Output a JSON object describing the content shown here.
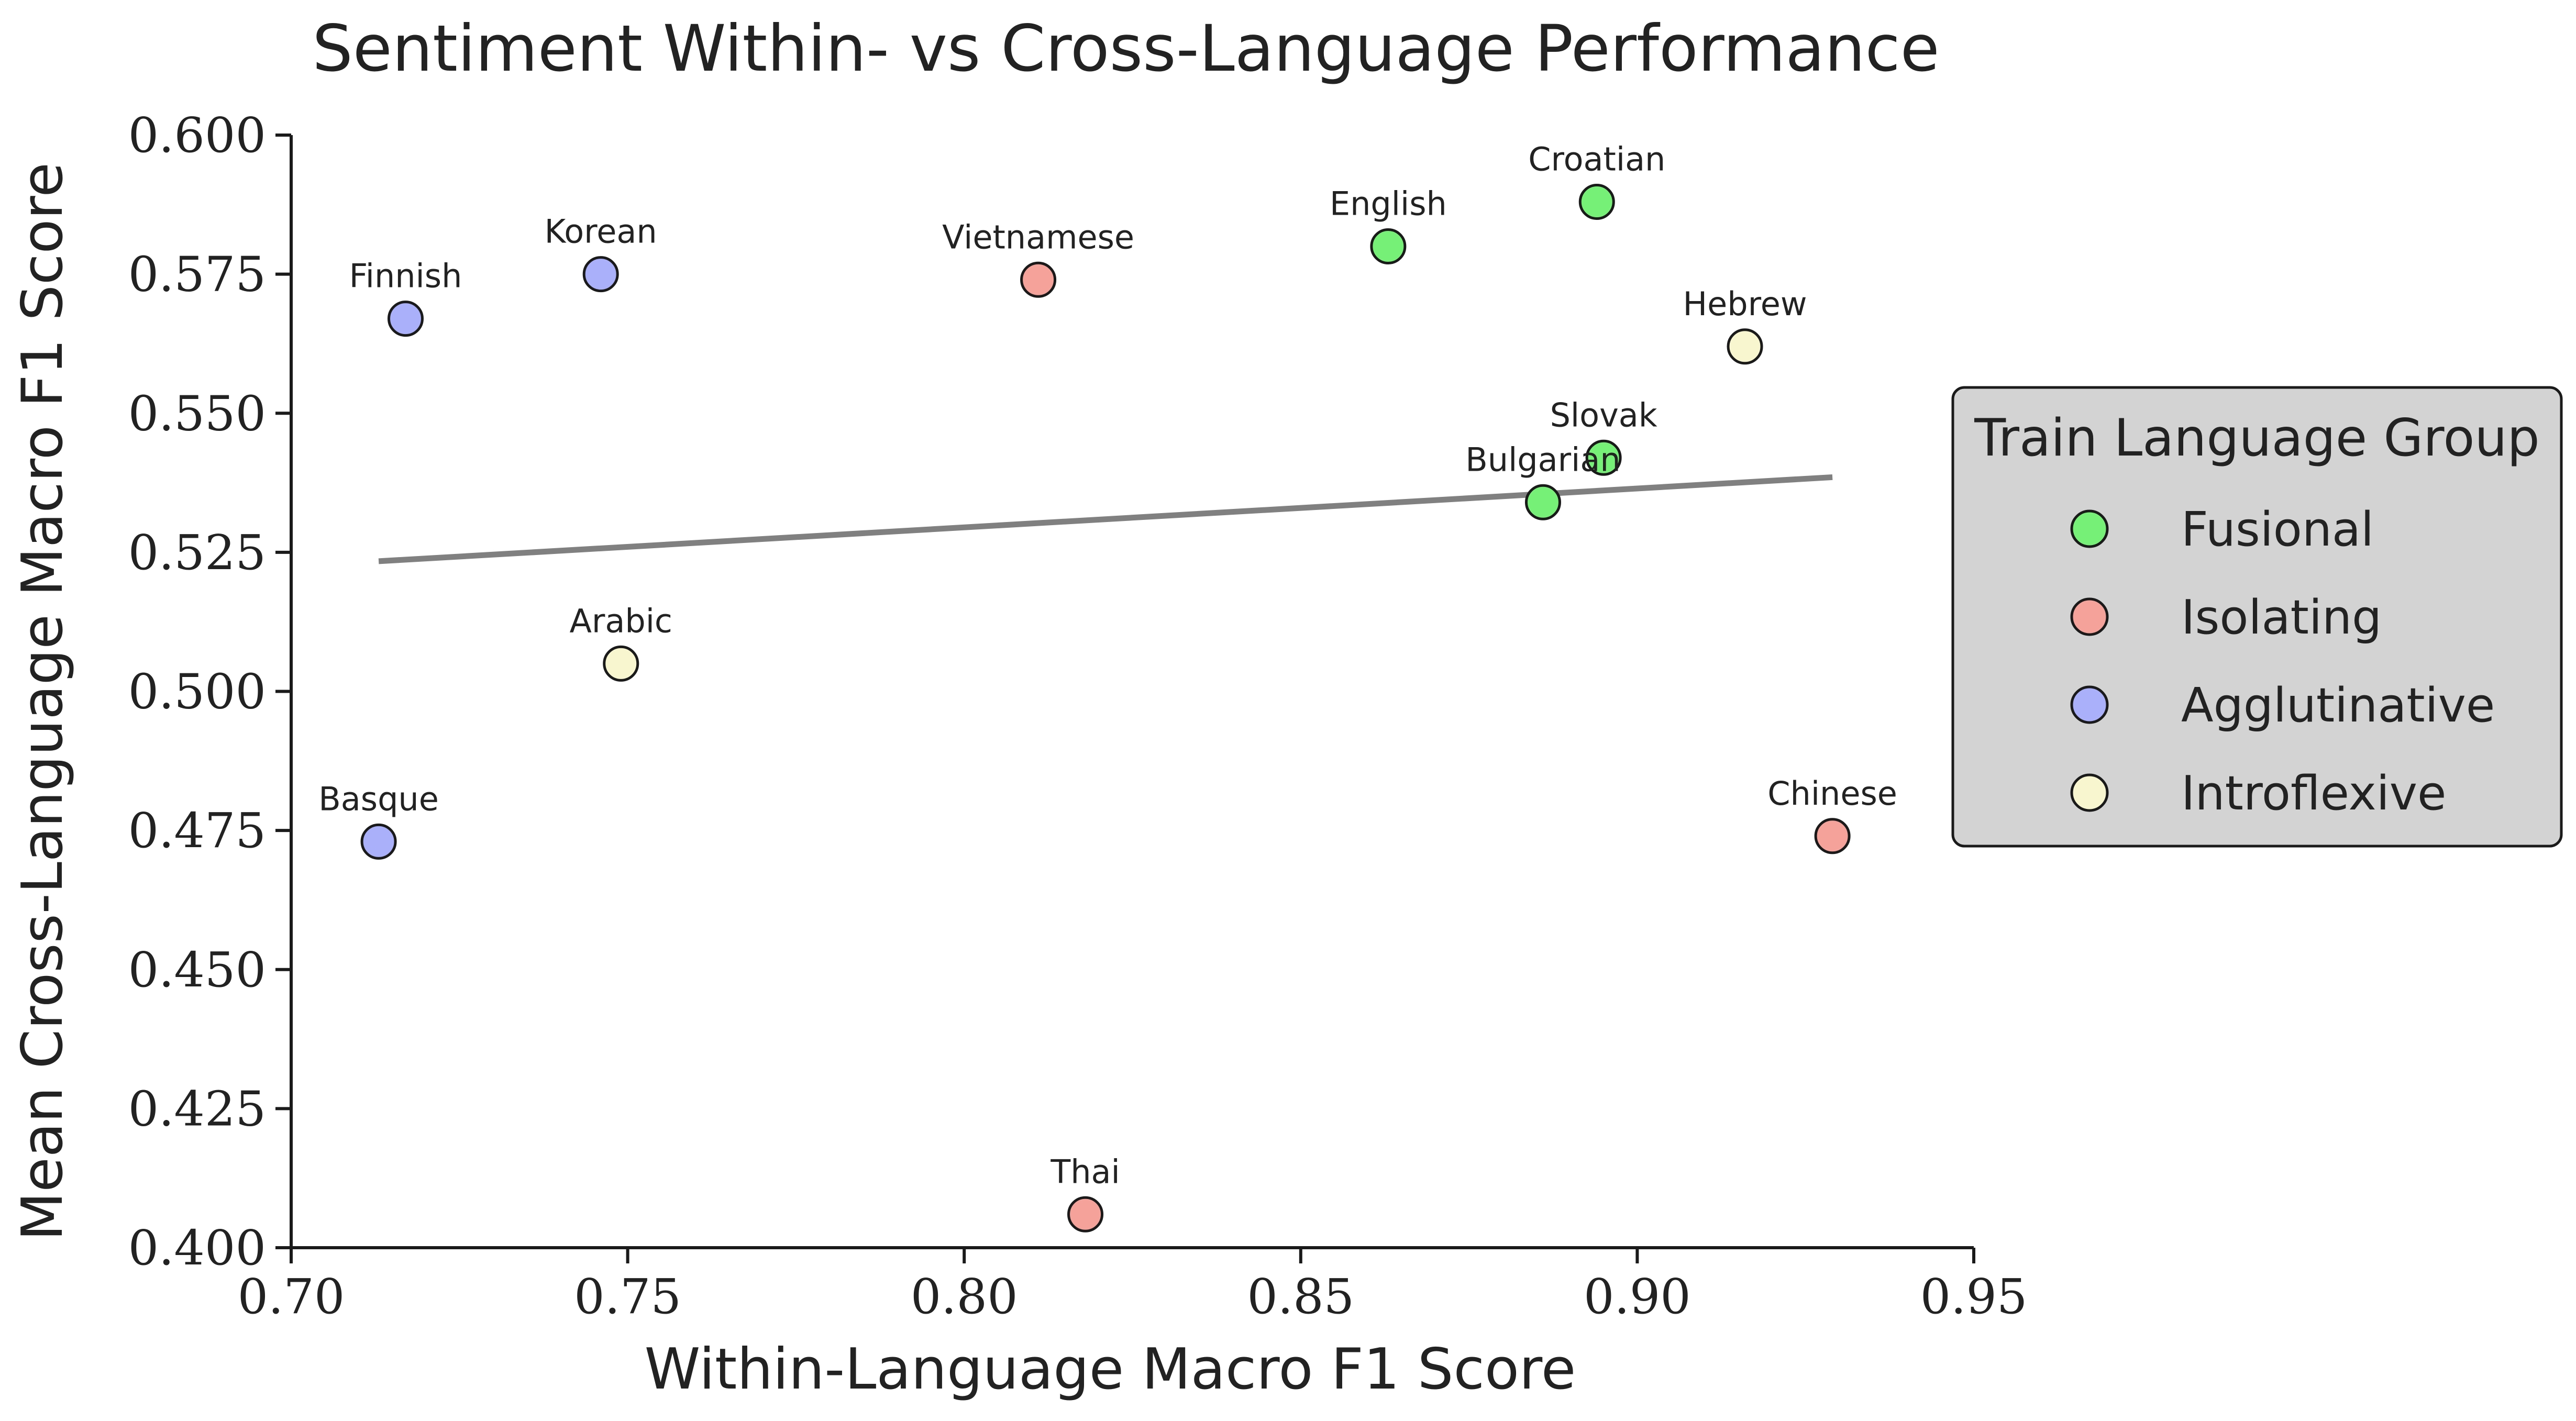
{
  "chart_data": {
    "type": "scatter",
    "title": "Sentiment Within- vs Cross-Language Performance",
    "xlabel": "Within-Language Macro F1 Score",
    "ylabel": "Mean Cross-Language Macro F1 Score",
    "xlim": [
      0.7,
      0.95
    ],
    "ylim": [
      0.4,
      0.6
    ],
    "x_ticks": [
      "0.70",
      "0.75",
      "0.80",
      "0.85",
      "0.90",
      "0.95"
    ],
    "y_ticks": [
      "0.400",
      "0.425",
      "0.450",
      "0.475",
      "0.500",
      "0.525",
      "0.550",
      "0.575",
      "0.600"
    ],
    "grid": false,
    "legend": {
      "title": "Train Language Group",
      "placement": "right",
      "entries": [
        {
          "name": "Fusional",
          "color": "#77f077"
        },
        {
          "name": "Isolating",
          "color": "#f5a29b"
        },
        {
          "name": "Agglutinative",
          "color": "#aab0fa"
        },
        {
          "name": "Introflexive",
          "color": "#f8f6cf"
        }
      ]
    },
    "points": [
      {
        "label": "Croatian",
        "x": 0.894,
        "y": 0.588,
        "group": "Fusional"
      },
      {
        "label": "English",
        "x": 0.863,
        "y": 0.58,
        "group": "Fusional"
      },
      {
        "label": "Slovak",
        "x": 0.895,
        "y": 0.542,
        "group": "Fusional"
      },
      {
        "label": "Bulgarian",
        "x": 0.886,
        "y": 0.534,
        "group": "Fusional"
      },
      {
        "label": "Vietnamese",
        "x": 0.811,
        "y": 0.574,
        "group": "Isolating"
      },
      {
        "label": "Thai",
        "x": 0.818,
        "y": 0.406,
        "group": "Isolating"
      },
      {
        "label": "Chinese",
        "x": 0.929,
        "y": 0.474,
        "group": "Isolating"
      },
      {
        "label": "Finnish",
        "x": 0.717,
        "y": 0.567,
        "group": "Agglutinative"
      },
      {
        "label": "Korean",
        "x": 0.746,
        "y": 0.575,
        "group": "Agglutinative"
      },
      {
        "label": "Basque",
        "x": 0.713,
        "y": 0.473,
        "group": "Agglutinative"
      },
      {
        "label": "Hebrew",
        "x": 0.916,
        "y": 0.562,
        "group": "Introflexive"
      },
      {
        "label": "Arabic",
        "x": 0.749,
        "y": 0.505,
        "group": "Introflexive"
      }
    ],
    "trend_line": {
      "x": [
        0.713,
        0.929
      ],
      "y": [
        0.5234,
        0.5385
      ],
      "color": "#808080"
    }
  }
}
